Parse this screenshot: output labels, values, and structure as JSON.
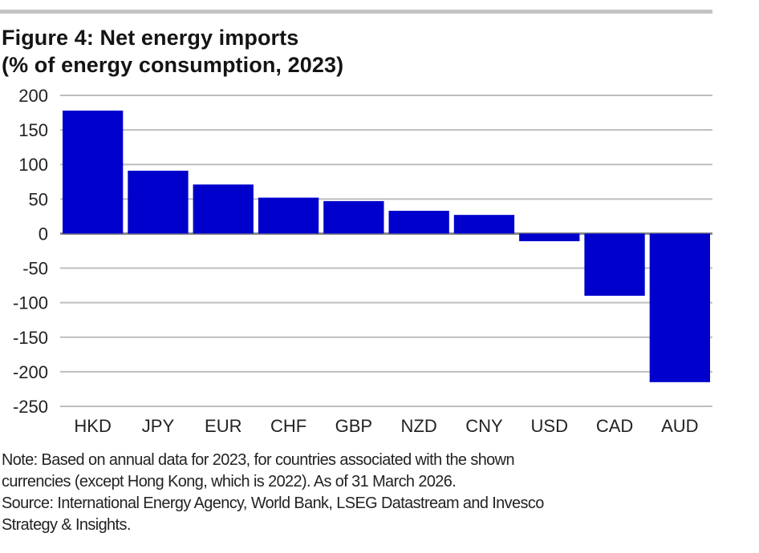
{
  "figure": {
    "title_line1": "Figure 4: Net energy imports",
    "title_line2": "(% of energy consumption, 2023)",
    "note_line1": "Note: Based on annual data for 2023, for countries associated with the shown",
    "note_line2": "currencies (except Hong Kong, which is 2022). As of 31 March 2026.",
    "source_line1": "Source: International Energy Agency, World Bank, LSEG Datastream and Invesco",
    "source_line2": "Strategy & Insights."
  },
  "colors": {
    "bar": "#0000cc",
    "grid": "#bdbdbd",
    "zero_line": "#8a8a8a",
    "text": "#222222"
  },
  "chart_data": {
    "type": "bar",
    "title": "Figure 4: Net energy imports (% of energy consumption, 2023)",
    "xlabel": "",
    "ylabel": "",
    "categories": [
      "HKD",
      "JPY",
      "EUR",
      "CHF",
      "GBP",
      "NZD",
      "CNY",
      "USD",
      "CAD",
      "AUD"
    ],
    "values": [
      178,
      91,
      71,
      52,
      47,
      33,
      27,
      -11,
      -90,
      -215
    ],
    "ylim": [
      -250,
      200
    ],
    "yticks": [
      200,
      150,
      100,
      50,
      0,
      -50,
      -100,
      -150,
      -200,
      -250
    ],
    "ytick_labels": [
      "200",
      "150",
      "100",
      "50",
      "0",
      "-50",
      "-100",
      "-150",
      "-200",
      "-250"
    ],
    "grid": true,
    "legend": "none"
  }
}
